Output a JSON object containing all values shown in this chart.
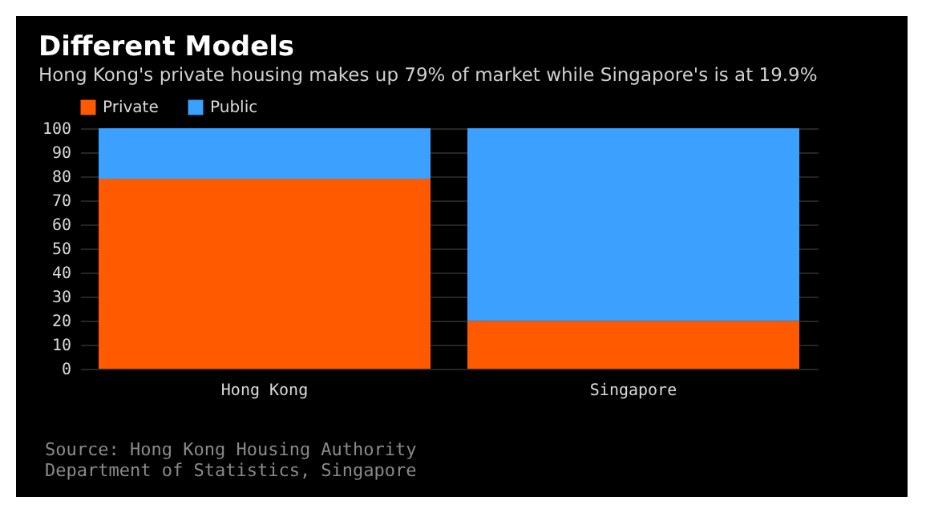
{
  "chart_data": {
    "type": "bar",
    "title": "Different Models",
    "subtitle": "Hong Kong's private housing makes up 79% of market while Singapore's is at 19.9%",
    "categories": [
      "Hong Kong",
      "Singapore"
    ],
    "series": [
      {
        "name": "Private",
        "color": "#ff5a00",
        "values": [
          79,
          19.9
        ]
      },
      {
        "name": "Public",
        "color": "#3ba0ff",
        "values": [
          21,
          80.1
        ]
      }
    ],
    "stacked": true,
    "ylim": [
      0,
      100
    ],
    "yticks": [
      0,
      10,
      20,
      30,
      40,
      50,
      60,
      70,
      80,
      90,
      100
    ],
    "grid": "y",
    "legend": "top left",
    "annotations": [
      "Source: Hong Kong Housing Authority",
      "Department of Statistics, Singapore"
    ]
  }
}
